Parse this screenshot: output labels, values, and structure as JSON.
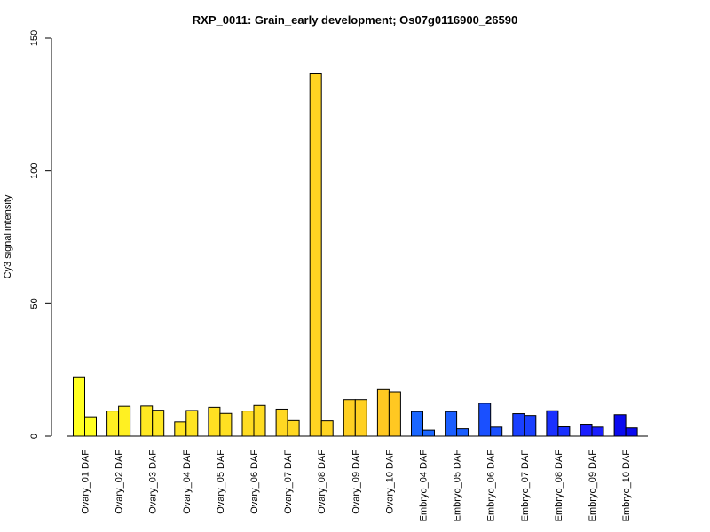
{
  "chart_data": {
    "type": "bar",
    "title": "RXP_0011: Grain_early development; Os07g0116900_26590",
    "ylabel": "Cy3 signal intensity",
    "xlabel": "",
    "ylim": [
      0,
      150
    ],
    "yticks": [
      0,
      50,
      100,
      150
    ],
    "grid": false,
    "categories": [
      "Ovary_01 DAF",
      "Ovary_02 DAF",
      "Ovary_03 DAF",
      "Ovary_04 DAF",
      "Ovary_05 DAF",
      "Ovary_06 DAF",
      "Ovary_07 DAF",
      "Ovary_08 DAF",
      "Ovary_09 DAF",
      "Ovary_10 DAF",
      "Embryo_04 DAF",
      "Embryo_05 DAF",
      "Embryo_06 DAF",
      "Embryo_07 DAF",
      "Embryo_08 DAF",
      "Embryo_09 DAF",
      "Embryo_10 DAF"
    ],
    "values": [
      [
        22.3,
        7.3
      ],
      [
        9.5,
        11.3
      ],
      [
        11.4,
        9.8
      ],
      [
        5.4,
        9.7
      ],
      [
        10.9,
        8.6
      ],
      [
        9.5,
        11.6
      ],
      [
        10.2,
        5.9
      ],
      [
        136.8,
        5.8
      ],
      [
        13.8,
        13.8
      ],
      [
        17.6,
        16.7
      ],
      [
        9.3,
        2.3
      ],
      [
        9.3,
        2.8
      ],
      [
        12.4,
        3.4
      ],
      [
        8.5,
        7.8
      ],
      [
        9.6,
        3.5
      ],
      [
        4.5,
        3.4
      ],
      [
        8.1,
        3.1
      ]
    ],
    "colors": [
      "#ffff22",
      "#fff022",
      "#ffe822",
      "#ffe422",
      "#ffe022",
      "#ffdc22",
      "#ffd822",
      "#ffd422",
      "#ffd022",
      "#ffc822",
      "#1a66ff",
      "#1a5eff",
      "#1a50ff",
      "#1a40ff",
      "#1a30ff",
      "#1a1eff",
      "#0a0af0"
    ]
  }
}
